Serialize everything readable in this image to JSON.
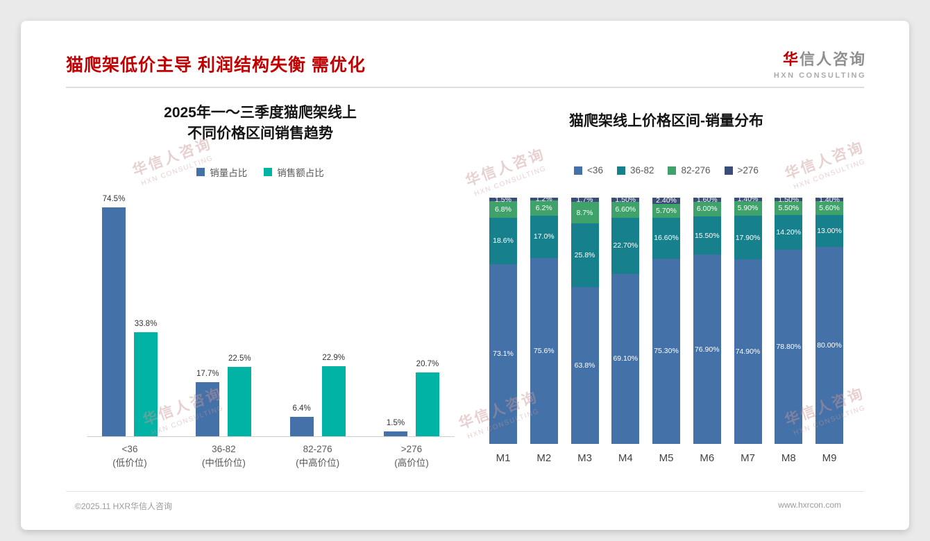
{
  "page": {
    "title": "猫爬架低价主导 利润结构失衡 需优化",
    "logo": {
      "cn_first": "华",
      "cn_rest": "信人咨询",
      "en": "HXN CONSULTING"
    },
    "watermark": {
      "cn": "华信人咨询",
      "en": "HXN CONSULTING"
    },
    "footer": {
      "left": "©2025.11 HXR华信人咨询",
      "right": "www.hxrcon.com"
    }
  },
  "colors": {
    "heading_red": "#C00000",
    "volume_blue": "#4472A8",
    "sales_teal": "#00B3A4",
    "stack_lt36": "#4472A8",
    "stack_36_82": "#16808C",
    "stack_82_276": "#3FA26B",
    "stack_gt276": "#3A4C78"
  },
  "chart_data": [
    {
      "type": "bar",
      "title_lines": [
        "2025年一～三季度猫爬架线上",
        "不同价格区间销售趋势"
      ],
      "categories": [
        [
          "<36",
          "(低价位)"
        ],
        [
          "36-82",
          "(中低价位)"
        ],
        [
          "82-276",
          "(中高价位)"
        ],
        [
          ">276",
          "(高价位)"
        ]
      ],
      "series": [
        {
          "name": "销量占比",
          "color": "#4472A8",
          "values": [
            74.5,
            17.7,
            6.4,
            1.5
          ],
          "labels": [
            "74.5%",
            "17.7%",
            "6.4%",
            "1.5%"
          ]
        },
        {
          "name": "销售额占比",
          "color": "#00B3A4",
          "values": [
            33.8,
            22.5,
            22.9,
            20.7
          ],
          "labels": [
            "33.8%",
            "22.5%",
            "22.9%",
            "20.7%"
          ]
        }
      ],
      "ylim": [
        0,
        80
      ],
      "grid": false,
      "legend_position": "top"
    },
    {
      "type": "stacked-bar",
      "title": "猫爬架线上价格区间-销量分布",
      "categories": [
        "M1",
        "M2",
        "M3",
        "M4",
        "M5",
        "M6",
        "M7",
        "M8",
        "M9"
      ],
      "series": [
        {
          "name": "<36",
          "color": "#4472A8",
          "values": [
            73.1,
            75.6,
            63.8,
            69.1,
            75.3,
            76.9,
            74.9,
            78.8,
            80.0
          ],
          "labels": [
            "73.1%",
            "75.6%",
            "63.8%",
            "69.10%",
            "75.30%",
            "76.90%",
            "74.90%",
            "78.80%",
            "80.00%"
          ]
        },
        {
          "name": "36-82",
          "color": "#16808C",
          "values": [
            18.6,
            17.0,
            25.8,
            22.7,
            16.6,
            15.5,
            17.9,
            14.2,
            13.0
          ],
          "labels": [
            "18.6%",
            "17.0%",
            "25.8%",
            "22.70%",
            "16.60%",
            "15.50%",
            "17.90%",
            "14.20%",
            "13.00%"
          ]
        },
        {
          "name": "82-276",
          "color": "#3FA26B",
          "values": [
            6.8,
            6.2,
            8.7,
            6.6,
            5.7,
            6.0,
            5.9,
            5.5,
            5.6
          ],
          "labels": [
            "6.8%",
            "6.2%",
            "8.7%",
            "6.60%",
            "5.70%",
            "6.00%",
            "5.90%",
            "5.50%",
            "5.60%"
          ]
        },
        {
          "name": ">276",
          "color": "#3A4C78",
          "values": [
            1.5,
            1.2,
            1.7,
            1.5,
            2.4,
            1.6,
            1.4,
            1.5,
            1.4
          ],
          "labels": [
            "1.5%",
            "1.2%",
            "1.7%",
            "1.50%",
            "2.40%",
            "1.60%",
            "1.40%",
            "1.50%",
            "1.40%"
          ]
        }
      ],
      "ylim": [
        0,
        100
      ],
      "grid": false,
      "legend_position": "top"
    }
  ]
}
